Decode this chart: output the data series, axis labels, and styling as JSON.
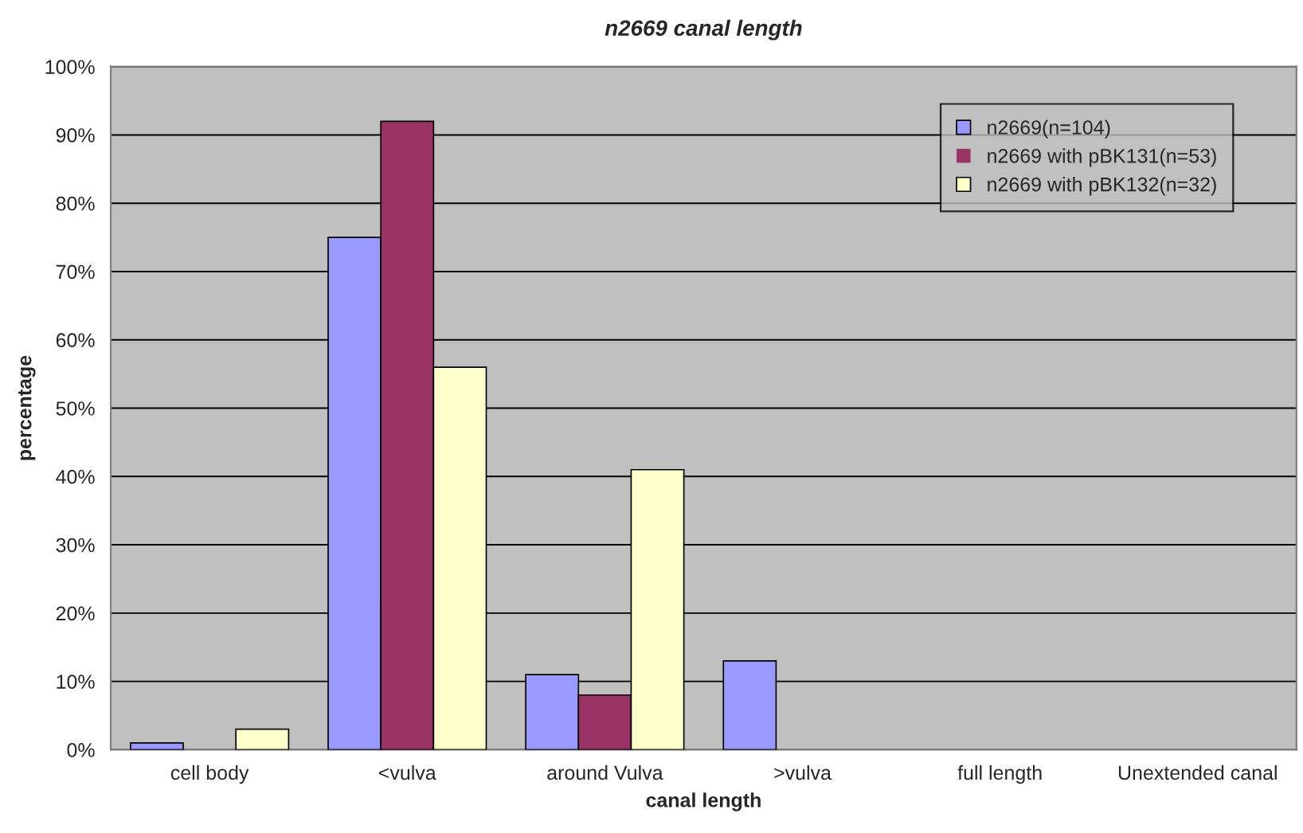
{
  "chart_data": {
    "type": "bar",
    "title": "n2669 canal length",
    "xlabel": "canal length",
    "ylabel": "percentage",
    "categories": [
      "cell body",
      "<vulva",
      "around Vulva",
      ">vulva",
      "full length",
      "Unextended canal"
    ],
    "series": [
      {
        "name": "n2669(n=104)",
        "color": "#9999ff",
        "values": [
          1,
          75,
          11,
          13,
          0,
          0
        ]
      },
      {
        "name": "n2669 with pBK131(n=53)",
        "color": "#993366",
        "values": [
          0,
          92,
          8,
          0,
          0,
          0
        ]
      },
      {
        "name": "n2669 with pBK132(n=32)",
        "color": "#ffffcc",
        "values": [
          3,
          56,
          41,
          0,
          0,
          0
        ]
      }
    ],
    "ylim": [
      0,
      100
    ],
    "yticks": [
      {
        "value": 0,
        "label": "0%"
      },
      {
        "value": 10,
        "label": "10%"
      },
      {
        "value": 20,
        "label": "20%"
      },
      {
        "value": 30,
        "label": "30%"
      },
      {
        "value": 40,
        "label": "40%"
      },
      {
        "value": 50,
        "label": "50%"
      },
      {
        "value": 60,
        "label": "60%"
      },
      {
        "value": 70,
        "label": "70%"
      },
      {
        "value": 80,
        "label": "80%"
      },
      {
        "value": 90,
        "label": "90%"
      },
      {
        "value": 100,
        "label": "100%"
      }
    ],
    "grid": "y",
    "legend": "top right"
  }
}
